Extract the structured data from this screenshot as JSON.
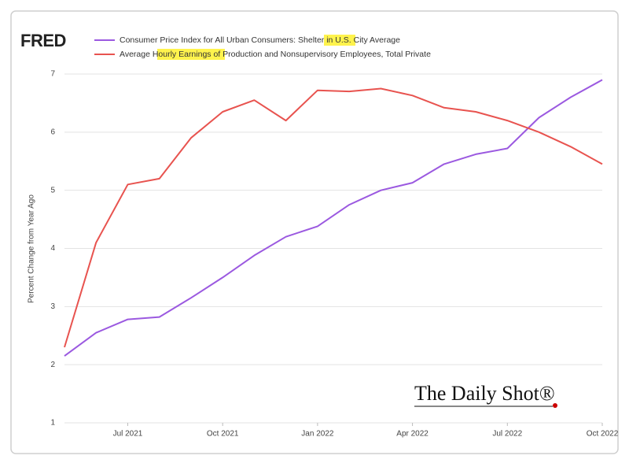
{
  "chart_data": {
    "type": "line",
    "logo": "FRED",
    "watermark": "The Daily Shot®",
    "y_label": "Percent Change from Year Ago",
    "x": [
      "2021-05",
      "2021-06",
      "2021-07",
      "2021-08",
      "2021-09",
      "2021-10",
      "2021-11",
      "2021-12",
      "2022-01",
      "2022-02",
      "2022-03",
      "2022-04",
      "2022-05",
      "2022-06",
      "2022-07",
      "2022-08",
      "2022-09",
      "2022-10"
    ],
    "series": [
      {
        "name": "Consumer Price Index for All Urban Consumers: Shelter in U.S. City Average",
        "color": "#9b59e0",
        "values": [
          2.15,
          2.55,
          2.78,
          2.82,
          3.15,
          3.5,
          3.88,
          4.2,
          4.38,
          4.75,
          5.0,
          5.13,
          5.45,
          5.62,
          5.72,
          6.25,
          6.6,
          6.9
        ]
      },
      {
        "name": "Average Hourly Earnings of Production and Nonsupervisory Employees, Total Private",
        "color": "#e8534f",
        "values": [
          2.3,
          4.1,
          5.1,
          5.2,
          5.9,
          6.35,
          6.55,
          6.2,
          6.72,
          6.7,
          6.75,
          6.63,
          6.42,
          6.35,
          6.2,
          6.0,
          5.75,
          5.45
        ]
      }
    ],
    "xlim": [
      "2021-05",
      "2022-10"
    ],
    "xticks": [
      {
        "value": "2021-07",
        "label": "Jul 2021"
      },
      {
        "value": "2021-10",
        "label": "Oct 2021"
      },
      {
        "value": "2022-01",
        "label": "Jan 2022"
      },
      {
        "value": "2022-04",
        "label": "Apr 2022"
      },
      {
        "value": "2022-07",
        "label": "Jul 2022"
      },
      {
        "value": "2022-10",
        "label": "Oct 2022"
      }
    ],
    "ylim": [
      1,
      7
    ],
    "yticks": [
      1,
      2,
      3,
      4,
      5,
      6,
      7
    ],
    "grid": true
  }
}
